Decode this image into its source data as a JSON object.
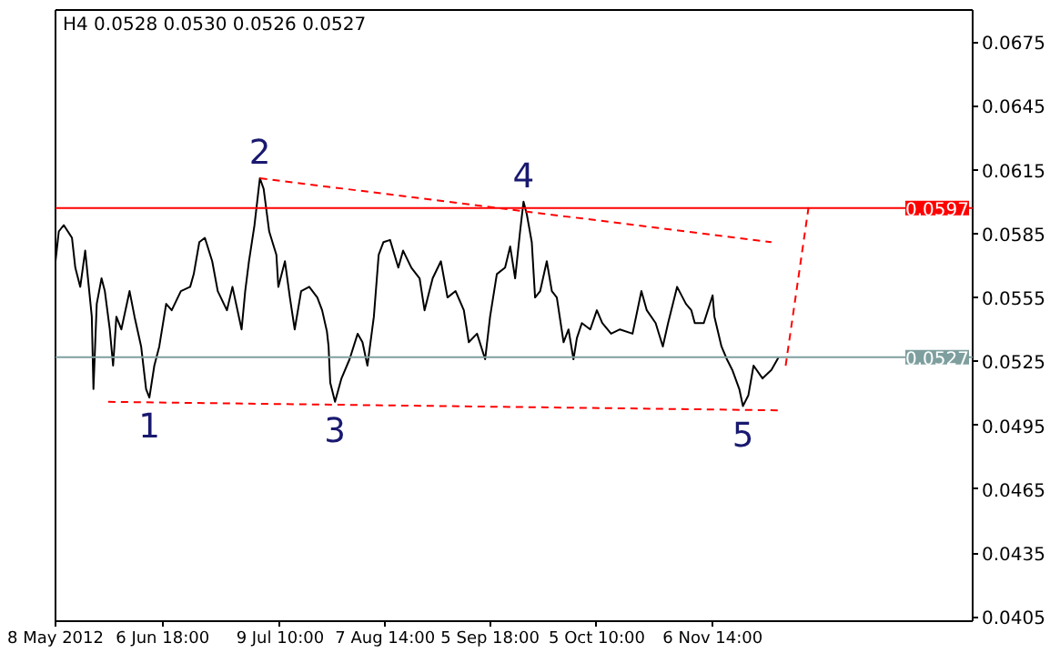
{
  "chart_data": {
    "type": "line",
    "title": "H4  0.0528 0.0530 0.0526 0.0527",
    "xlim": [
      "2012-05-08",
      "2013-01-17T20:00"
    ],
    "ylim": [
      0.0403,
      0.069
    ],
    "xticks": [
      {
        "value": "2012-05-08",
        "label": "8 May 2012"
      },
      {
        "value": "2012-06-06T18:00",
        "label": "6 Jun 18:00"
      },
      {
        "value": "2012-07-09T10:00",
        "label": "9 Jul 10:00"
      },
      {
        "value": "2012-08-07T14:00",
        "label": "7 Aug 14:00"
      },
      {
        "value": "2012-09-05T18:00",
        "label": "5 Sep 18:00"
      },
      {
        "value": "2012-10-05T10:00",
        "label": "5 Oct 10:00"
      },
      {
        "value": "2012-11-06T14:00",
        "label": "6 Nov 14:00"
      }
    ],
    "yticks": [
      0.0405,
      0.0435,
      0.0465,
      0.0495,
      0.0525,
      0.0555,
      0.0585,
      0.0615,
      0.0645,
      0.0675
    ],
    "grid": false,
    "series": [
      {
        "color": "#000000",
        "line_style": "solid",
        "x": [
          "2012-05-08T00:00",
          "2012-05-08T22:00",
          "2012-05-10T07:00",
          "2012-05-12T14:00",
          "2012-05-13T12:00",
          "2012-05-14T21:00",
          "2012-05-16T06:00",
          "2012-05-18T02:00",
          "2012-05-18T13:00",
          "2012-05-19T11:00",
          "2012-05-20T19:00",
          "2012-05-21T17:00",
          "2012-05-23T02:00",
          "2012-05-24T00:00",
          "2012-05-24T22:00",
          "2012-05-26T07:00",
          "2012-05-28T14:00",
          "2012-05-29T23:00",
          "2012-05-31T19:00",
          "2012-06-02T04:00",
          "2012-06-03T02:00",
          "2012-06-04T11:00",
          "2012-06-05T20:00",
          "2012-06-07T18:00",
          "2012-06-09T07:00",
          "2012-06-11T20:00",
          "2012-06-14T10:00",
          "2012-06-15T10:00",
          "2012-06-16T23:00",
          "2012-06-18T12:00",
          "2012-06-20T13:00",
          "2012-06-22T02:00",
          "2012-06-24T15:00",
          "2012-06-26T04:00",
          "2012-06-28T17:00",
          "2012-06-29T17:00",
          "2012-06-30T18:00",
          "2012-07-02T07:00",
          "2012-07-03T19:00",
          "2012-07-04T20:00",
          "2012-07-06T09:00",
          "2012-07-08T09:00",
          "2012-07-08T22:00",
          "2012-07-10T18:00",
          "2012-07-12T03:00",
          "2012-07-13T11:00",
          "2012-07-15T06:00",
          "2012-07-17T12:00",
          "2012-07-19T18:00",
          "2012-07-21T02:00",
          "2012-07-22T10:00",
          "2012-07-22T21:00",
          "2012-07-23T08:00",
          "2012-07-24T16:00",
          "2012-07-26T11:00",
          "2012-07-28T17:00",
          "2012-07-30T23:00",
          "2012-08-01T07:00",
          "2012-08-02T16:00",
          "2012-08-04T11:00",
          "2012-08-05T19:00",
          "2012-08-07T03:00",
          "2012-08-08T23:00",
          "2012-08-11T06:00",
          "2012-08-12T14:00",
          "2012-08-14T21:00",
          "2012-08-17T04:00",
          "2012-08-18T13:00",
          "2012-08-20T19:00",
          "2012-08-23T02:00",
          "2012-08-24T22:00",
          "2012-08-27T04:00",
          "2012-08-29T11:00",
          "2012-08-30T20:00",
          "2012-09-02T03:00",
          "2012-09-04T09:00",
          "2012-09-05T18:00",
          "2012-09-07T15:00",
          "2012-09-09T22:00",
          "2012-09-11T08:00",
          "2012-09-12T17:00",
          "2012-09-14T02:00",
          "2012-09-15T01:00",
          "2012-09-15T23:00",
          "2012-09-17T08:00",
          "2012-09-18T06:00",
          "2012-09-19T16:00",
          "2012-09-21T12:00",
          "2012-09-22T22:00",
          "2012-09-24T07:00",
          "2012-09-26T04:00",
          "2012-09-27T13:00",
          "2012-09-28T22:00",
          "2012-09-29T21:00",
          "2012-10-01T06:00",
          "2012-10-03T14:00",
          "2012-10-05T10:00",
          "2012-10-06T22:00",
          "2012-10-09T09:00",
          "2012-10-11T20:00",
          "2012-10-15T08:00",
          "2012-10-17T19:00",
          "2012-10-19T07:00",
          "2012-10-21T18:00",
          "2012-10-23T18:00",
          "2012-10-25T05:00",
          "2012-10-27T17:00",
          "2012-10-30T04:00",
          "2012-10-31T16:00",
          "2012-11-01T15:00",
          "2012-11-04T03:00",
          "2012-11-06T14:00",
          "2012-11-07T02:00",
          "2012-11-09T01:00",
          "2012-11-10T13:00",
          "2012-11-12T01:00",
          "2012-11-14T00:00",
          "2012-11-15T00:00",
          "2012-11-16T12:00",
          "2012-11-17T23:00",
          "2012-11-20T11:00",
          "2012-11-22T22:00",
          "2012-11-24T22:00"
        ],
        "values": [
          0.0572,
          0.0586,
          0.0589,
          0.0583,
          0.0569,
          0.056,
          0.0577,
          0.0546,
          0.0512,
          0.0552,
          0.0564,
          0.0558,
          0.054,
          0.0523,
          0.0546,
          0.054,
          0.0558,
          0.0546,
          0.0532,
          0.0512,
          0.0508,
          0.0523,
          0.0532,
          0.0552,
          0.0549,
          0.0558,
          0.056,
          0.0566,
          0.0581,
          0.0583,
          0.0572,
          0.0558,
          0.0549,
          0.056,
          0.054,
          0.0558,
          0.0572,
          0.0589,
          0.0611,
          0.0606,
          0.0586,
          0.0575,
          0.056,
          0.0572,
          0.0555,
          0.054,
          0.0558,
          0.056,
          0.0555,
          0.0549,
          0.0539,
          0.0532,
          0.0515,
          0.0506,
          0.0517,
          0.0526,
          0.0538,
          0.0534,
          0.0523,
          0.0546,
          0.0575,
          0.0581,
          0.0582,
          0.0569,
          0.0577,
          0.0569,
          0.0564,
          0.0549,
          0.0564,
          0.0572,
          0.0555,
          0.0558,
          0.0549,
          0.0534,
          0.0538,
          0.0526,
          0.0546,
          0.0566,
          0.0569,
          0.0579,
          0.0564,
          0.0586,
          0.06,
          0.0594,
          0.0581,
          0.0555,
          0.0558,
          0.0572,
          0.0558,
          0.0555,
          0.0534,
          0.054,
          0.0526,
          0.0536,
          0.0543,
          0.054,
          0.0549,
          0.0543,
          0.0538,
          0.054,
          0.0538,
          0.0558,
          0.0549,
          0.0543,
          0.0532,
          0.0543,
          0.056,
          0.0552,
          0.0549,
          0.0543,
          0.0543,
          0.0556,
          0.0546,
          0.0532,
          0.0526,
          0.0521,
          0.0512,
          0.0504,
          0.0509,
          0.0523,
          0.0517,
          0.0521,
          0.0527
        ]
      },
      {
        "color": "#ff0000",
        "line_style": "dashed",
        "x": [
          "2012-07-03T19:00",
          "2012-11-22T22:00"
        ],
        "values": [
          0.0611,
          0.0581
        ]
      },
      {
        "color": "#ff0000",
        "line_style": "dashed",
        "x": [
          "2012-05-22T15:00",
          "2012-11-25T10:00"
        ],
        "values": [
          0.0506,
          0.0502
        ]
      },
      {
        "color": "#ff0000",
        "line_style": "dashed",
        "x": [
          "2012-11-26T21:00",
          "2012-12-03T07:00"
        ],
        "values": [
          0.0523,
          0.0598
        ]
      }
    ],
    "ref_lines": [
      {
        "axis": "y",
        "value": 0.0597,
        "label": "0.0597",
        "color": "#ff0000"
      },
      {
        "axis": "y",
        "value": 0.0527,
        "label": "0.0527",
        "color": "#7f9f9f"
      }
    ],
    "annotations": [
      {
        "text": "1",
        "x": "2012-06-03T02:00",
        "y": 0.0508
      },
      {
        "text": "2",
        "x": "2012-07-03T19:00",
        "y": 0.0611
      },
      {
        "text": "3",
        "x": "2012-07-24T16:00",
        "y": 0.0506
      },
      {
        "text": "4",
        "x": "2012-09-15T01:00",
        "y": 0.06
      },
      {
        "text": "5",
        "x": "2012-11-15T00:00",
        "y": 0.0504
      }
    ]
  }
}
